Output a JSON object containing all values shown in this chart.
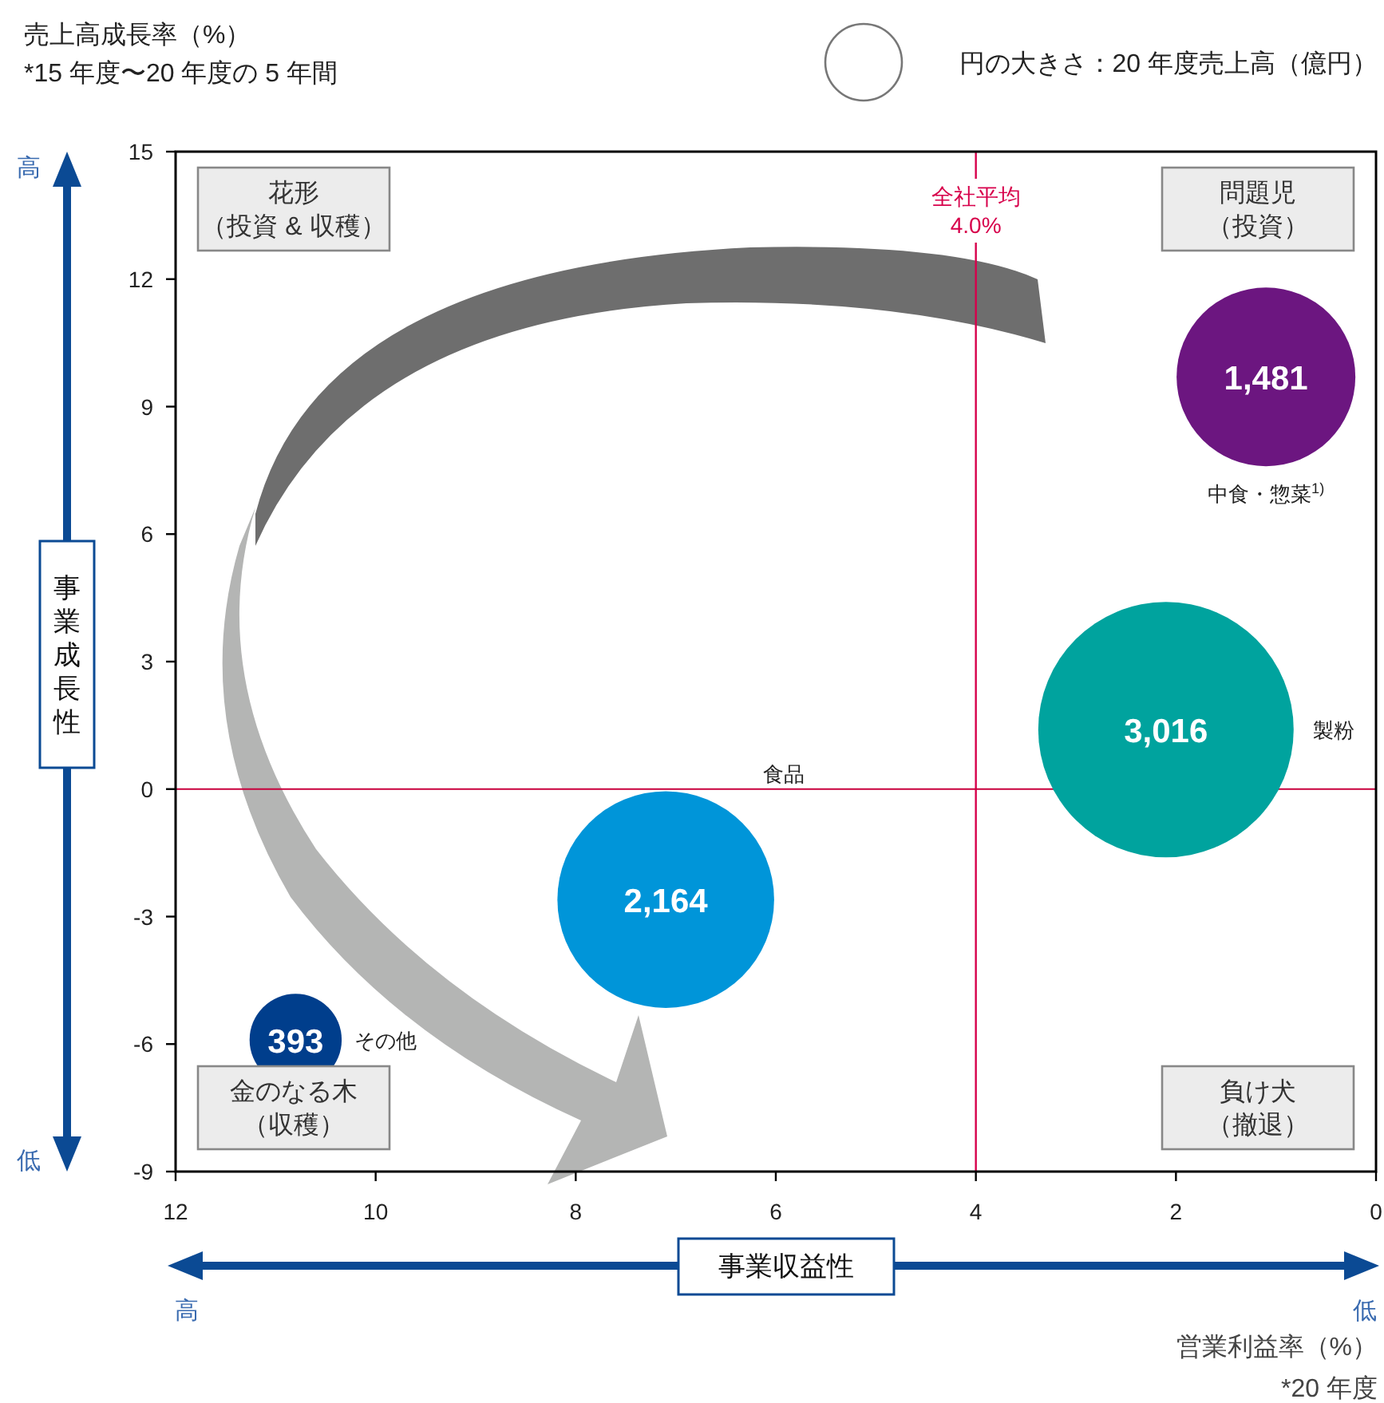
{
  "chart_data": {
    "type": "bubble",
    "xlabel": "事業収益性",
    "ylabel": "事業成長性",
    "xlim": [
      12,
      0
    ],
    "xticks": [
      12,
      10,
      8,
      6,
      4,
      2,
      0
    ],
    "ylim": [
      -9,
      15
    ],
    "yticks": [
      -9,
      -6,
      -3,
      0,
      3,
      6,
      9,
      12,
      15
    ],
    "grid": false,
    "series": [
      {
        "name": "中食・惣菜$^{1)}$",
        "color": "#6c1680",
        "x": [
          1.1
        ],
        "values": [
          9.7
        ],
        "sizes": [
          0.49
        ]
      },
      {
        "name": "製粉",
        "color": "#00a39e",
        "x": [
          2.1
        ],
        "values": [
          1.4
        ],
        "sizes": [
          1
        ]
      },
      {
        "name": "食品",
        "color": "#0095d9",
        "x": [
          7.1
        ],
        "values": [
          -2.6
        ],
        "sizes": [
          0.72
        ]
      },
      {
        "name": "その他",
        "color": "#003e8c",
        "x": [
          10.8
        ],
        "values": [
          -5.9
        ],
        "sizes": [
          0.13
        ]
      }
    ],
    "ref_lines": [
      {
        "axis": "x",
        "value": 4.0,
        "label": "全社平均\n4.0%",
        "color": "#d7004b"
      },
      {
        "axis": "y",
        "value": 0,
        "color": "#c8003c"
      }
    ],
    "annotations": [
      {
        "text": "1,481",
        "x": 1.1,
        "y": 9.7
      },
      {
        "text": "3,016",
        "x": 2.1,
        "y": 1.4
      },
      {
        "text": "2,164",
        "x": 7.1,
        "y": -2.6
      },
      {
        "text": "393",
        "x": 10.8,
        "y": -5.9
      },
      "花形（投資 & 収穫）",
      "問題児（投資）",
      "金のなる木（収穫）",
      "負け犬（撤退）",
      "売上高成長率（%）\n*15 年度〜20 年度の 5 年間",
      "円の大きさ：20 年度売上高（億円）",
      "営業利益率（%）\n*20 年度",
      "高",
      "低",
      "高",
      "低"
    ]
  }
}
